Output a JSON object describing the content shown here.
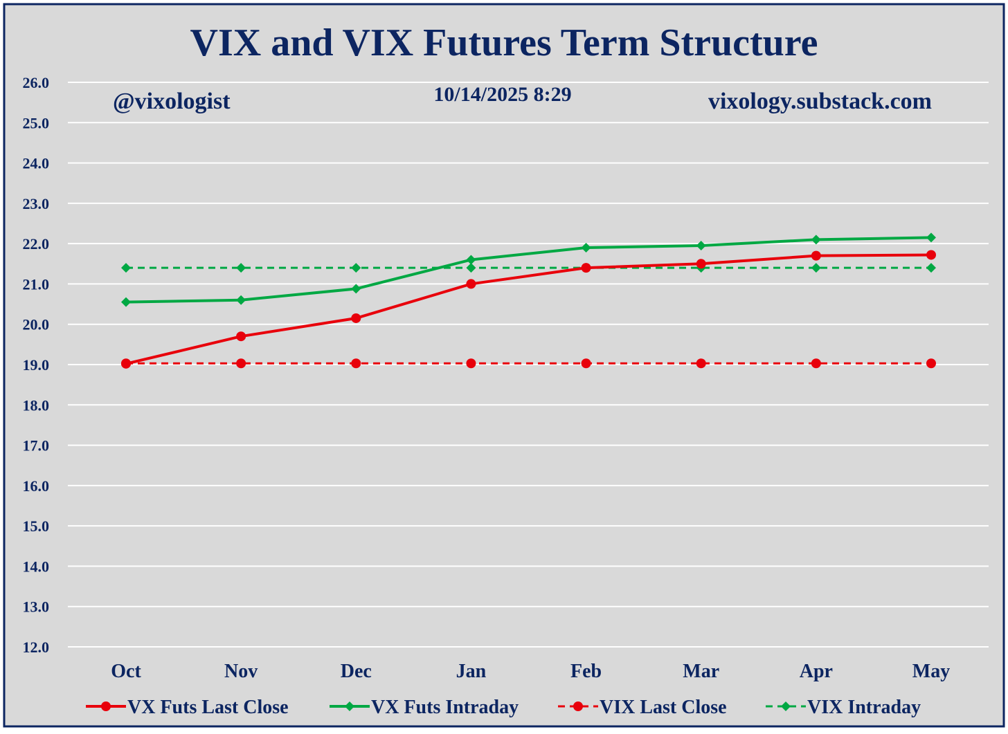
{
  "chart_data": {
    "type": "line",
    "title": "VIX and VIX Futures Term Structure",
    "annotations": {
      "handle": "@vixologist",
      "timestamp": "10/14/2025 8:29",
      "website": "vixology.substack.com"
    },
    "categories": [
      "Oct",
      "Nov",
      "Dec",
      "Jan",
      "Feb",
      "Mar",
      "Apr",
      "May"
    ],
    "ylim": [
      12.0,
      26.0
    ],
    "yticks": [
      "12.0",
      "13.0",
      "14.0",
      "15.0",
      "16.0",
      "17.0",
      "18.0",
      "19.0",
      "20.0",
      "21.0",
      "22.0",
      "23.0",
      "24.0",
      "25.0",
      "26.0"
    ],
    "grid": true,
    "legend_position": "bottom",
    "series": [
      {
        "name": "VX Futs Last Close",
        "color": "#e8000b",
        "style": "solid",
        "marker": "circle",
        "values": [
          19.02,
          19.7,
          20.15,
          21.0,
          21.4,
          21.5,
          21.7,
          21.72
        ]
      },
      {
        "name": "VX Futs Intraday",
        "color": "#00a843",
        "style": "solid",
        "marker": "diamond",
        "values": [
          20.55,
          20.6,
          20.88,
          21.6,
          21.9,
          21.95,
          22.1,
          22.15
        ]
      },
      {
        "name": "VIX Last Close",
        "color": "#e8000b",
        "style": "dashed",
        "marker": "circle",
        "values": [
          19.03,
          19.03,
          19.03,
          19.03,
          19.03,
          19.03,
          19.03,
          19.03
        ]
      },
      {
        "name": "VIX Intraday",
        "color": "#00a843",
        "style": "dashed",
        "marker": "diamond",
        "values": [
          21.4,
          21.4,
          21.4,
          21.4,
          21.4,
          21.4,
          21.4,
          21.4
        ]
      }
    ],
    "colors": {
      "background": "#d9d9d9",
      "border": "#0c2561",
      "text": "#0c2561",
      "grid": "#ffffff"
    }
  }
}
